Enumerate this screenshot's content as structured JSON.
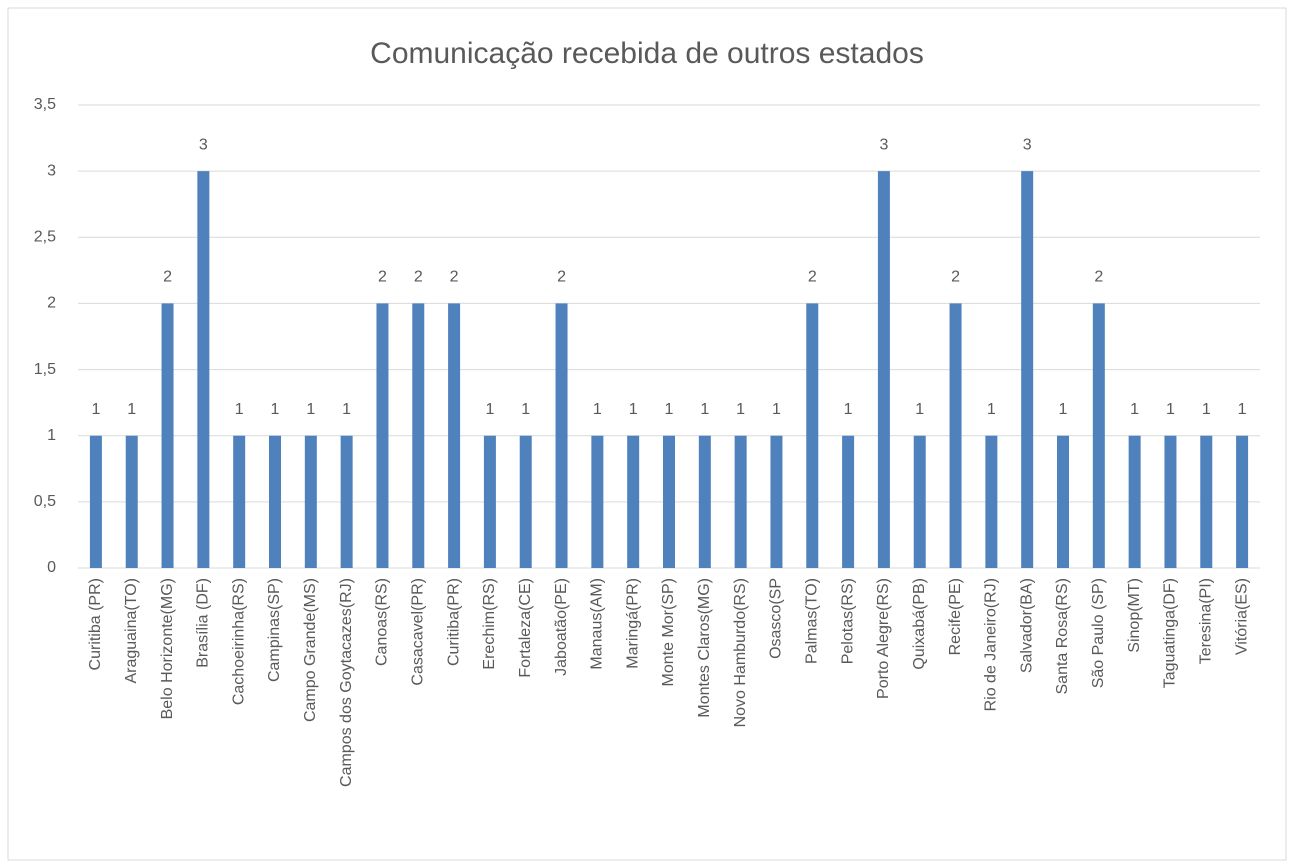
{
  "chart_data": {
    "type": "bar",
    "title": "Comunicação recebida de outros estados",
    "categories": [
      "Curitiba (PR)",
      "Araguaina(TO)",
      "Belo Horizonte(MG)",
      "Brasília (DF)",
      "Cachoeirinha(RS)",
      "Campinas(SP)",
      "Campo Grande(MS)",
      "Campos dos Goytacazes(RJ)",
      "Canoas(RS)",
      "Casacavel(PR)",
      "Curitiba(PR)",
      "Erechim(RS)",
      "Fortaleza(CE)",
      "Jaboatão(PE)",
      "Manaus(AM)",
      "Maringá(PR)",
      "Monte Mor(SP)",
      "Montes Claros(MG)",
      "Novo Hamburdo(RS)",
      "Osasco(SP",
      "Palmas(TO)",
      "Pelotas(RS)",
      "Porto Alegre(RS)",
      "Quixabá(PB)",
      "Recife(PE)",
      "Rio de Janeiro(RJ)",
      "Salvador(BA)",
      "Santa Rosa(RS)",
      "São Paulo (SP)",
      "Sinop(MT)",
      "Taguatinga(DF)",
      "Teresina(PI)",
      "Vitória(ES)"
    ],
    "values": [
      1,
      1,
      2,
      3,
      1,
      1,
      1,
      1,
      2,
      2,
      2,
      1,
      1,
      2,
      1,
      1,
      1,
      1,
      1,
      1,
      2,
      1,
      3,
      1,
      2,
      1,
      3,
      1,
      2,
      1,
      1,
      1,
      1
    ],
    "color": "#4f81bd",
    "ylim": [
      0,
      3.5
    ],
    "yticks": [
      0,
      {
        "value": 0.5,
        "label": "0,5"
      },
      1,
      {
        "value": 1.5,
        "label": "1,5"
      },
      2,
      {
        "value": 2.5,
        "label": "2,5"
      },
      3,
      {
        "value": 3.5,
        "label": "3,5"
      }
    ],
    "grid": true
  }
}
